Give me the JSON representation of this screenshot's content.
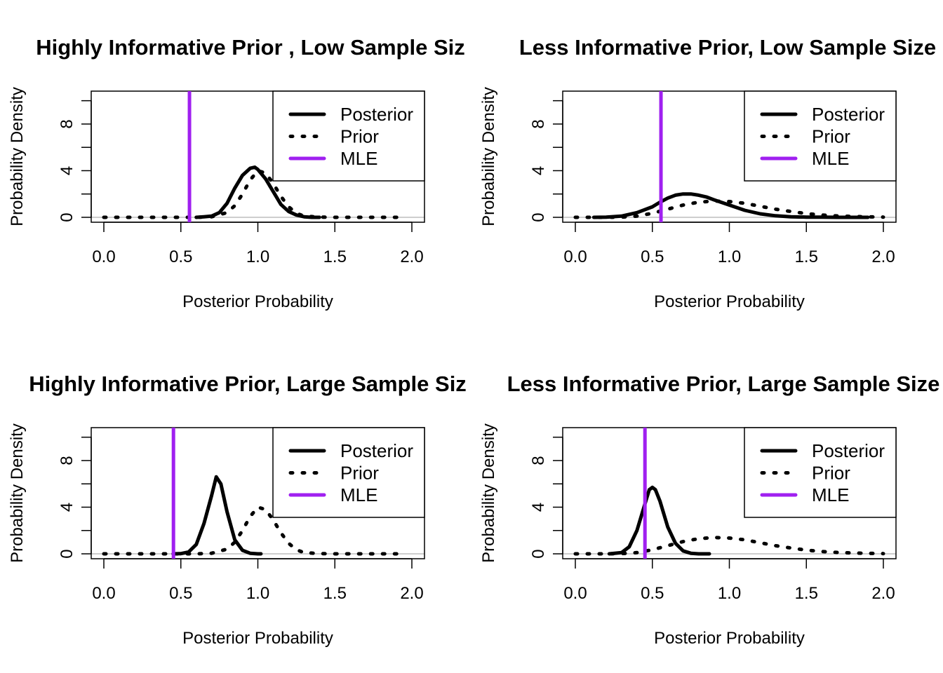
{
  "colors": {
    "posterior": "#000000",
    "prior": "#000000",
    "mle": "#a020f0",
    "zero_line": "#bebebe"
  },
  "chart_data": [
    {
      "type": "line",
      "title": "Highly Informative Prior , Low Sample Siz",
      "xlabel": "Posterior Probability",
      "ylabel": "Probability Density",
      "xlim": [
        0,
        2
      ],
      "ylim": [
        0,
        10
      ],
      "x_ticks": [
        "0.0",
        "0.5",
        "1.0",
        "1.5",
        "2.0"
      ],
      "y_ticks": [
        "0",
        "4",
        "8"
      ],
      "legend": {
        "position": "top-right",
        "entries": [
          "Posterior",
          "Prior",
          "MLE"
        ]
      },
      "mle": 0.556,
      "series": [
        {
          "name": "Posterior",
          "style": "solid",
          "x": [
            0.6,
            0.65,
            0.7,
            0.75,
            0.8,
            0.85,
            0.9,
            0.95,
            0.98,
            1.0,
            1.05,
            1.1,
            1.15,
            1.2,
            1.25,
            1.3,
            1.35,
            1.4
          ],
          "y": [
            0.0,
            0.05,
            0.1,
            0.4,
            1.2,
            2.5,
            3.6,
            4.2,
            4.3,
            4.1,
            3.3,
            2.2,
            1.1,
            0.5,
            0.2,
            0.05,
            0.0,
            0.0
          ]
        },
        {
          "name": "Prior",
          "style": "dotted",
          "x": [
            0.0,
            0.1,
            0.2,
            0.3,
            0.4,
            0.5,
            0.6,
            0.7,
            0.8,
            0.85,
            0.9,
            0.95,
            1.0,
            1.05,
            1.1,
            1.15,
            1.2,
            1.25,
            1.3,
            1.4,
            1.5,
            1.6,
            1.7,
            1.8,
            1.9,
            1.95
          ],
          "y": [
            0,
            0,
            0,
            0,
            0,
            0,
            0,
            0.05,
            0.4,
            1.0,
            2.0,
            3.2,
            4.0,
            3.8,
            2.9,
            1.8,
            0.9,
            0.35,
            0.1,
            0.02,
            0,
            0,
            0,
            0,
            0,
            0
          ]
        }
      ]
    },
    {
      "type": "line",
      "title": "Less Informative Prior, Low Sample Size",
      "xlabel": "Posterior Probability",
      "ylabel": "Probability Density",
      "xlim": [
        0,
        2
      ],
      "ylim": [
        0,
        10
      ],
      "x_ticks": [
        "0.0",
        "0.5",
        "1.0",
        "1.5",
        "2.0"
      ],
      "y_ticks": [
        "0",
        "4",
        "8"
      ],
      "legend": {
        "position": "top-right",
        "entries": [
          "Posterior",
          "Prior",
          "MLE"
        ]
      },
      "mle": 0.556,
      "series": [
        {
          "name": "Posterior",
          "style": "solid",
          "x": [
            0.12,
            0.2,
            0.3,
            0.4,
            0.5,
            0.55,
            0.6,
            0.65,
            0.7,
            0.75,
            0.8,
            0.85,
            0.9,
            1.0,
            1.1,
            1.2,
            1.3,
            1.4,
            1.5,
            1.6,
            1.7,
            1.8,
            1.9
          ],
          "y": [
            0.0,
            0.02,
            0.1,
            0.4,
            0.9,
            1.3,
            1.65,
            1.9,
            2.0,
            2.0,
            1.9,
            1.75,
            1.5,
            1.05,
            0.6,
            0.3,
            0.13,
            0.05,
            0.02,
            0.01,
            0,
            0,
            0
          ]
        },
        {
          "name": "Prior",
          "style": "dotted",
          "x": [
            0.0,
            0.1,
            0.2,
            0.3,
            0.4,
            0.5,
            0.6,
            0.7,
            0.8,
            0.9,
            1.0,
            1.1,
            1.2,
            1.3,
            1.4,
            1.5,
            1.6,
            1.7,
            1.8,
            1.9,
            2.0
          ],
          "y": [
            0,
            0,
            0,
            0.02,
            0.1,
            0.35,
            0.7,
            1.05,
            1.3,
            1.4,
            1.35,
            1.2,
            0.95,
            0.7,
            0.5,
            0.32,
            0.2,
            0.12,
            0.07,
            0.04,
            0.02
          ]
        }
      ]
    },
    {
      "type": "line",
      "title": "Highly Informative Prior, Large Sample Siz",
      "xlabel": "Posterior Probability",
      "ylabel": "Probability Density",
      "xlim": [
        0,
        2
      ],
      "ylim": [
        0,
        10
      ],
      "x_ticks": [
        "0.0",
        "0.5",
        "1.0",
        "1.5",
        "2.0"
      ],
      "y_ticks": [
        "0",
        "4",
        "8"
      ],
      "legend": {
        "position": "top-right",
        "entries": [
          "Posterior",
          "Prior",
          "MLE"
        ]
      },
      "mle": 0.452,
      "series": [
        {
          "name": "Posterior",
          "style": "solid",
          "x": [
            0.45,
            0.5,
            0.55,
            0.6,
            0.65,
            0.7,
            0.73,
            0.76,
            0.8,
            0.85,
            0.9,
            0.95,
            1.0,
            1.02
          ],
          "y": [
            0.0,
            0.02,
            0.15,
            0.8,
            2.6,
            5.0,
            6.6,
            6.0,
            3.6,
            1.2,
            0.3,
            0.05,
            0.0,
            0.0
          ]
        },
        {
          "name": "Prior",
          "style": "dotted",
          "x": [
            0.0,
            0.1,
            0.2,
            0.3,
            0.4,
            0.5,
            0.6,
            0.7,
            0.8,
            0.85,
            0.9,
            0.95,
            1.0,
            1.05,
            1.1,
            1.15,
            1.2,
            1.25,
            1.3,
            1.4,
            1.5,
            1.6,
            1.7,
            1.8,
            1.9,
            1.95
          ],
          "y": [
            0,
            0,
            0,
            0,
            0,
            0,
            0,
            0.05,
            0.4,
            1.0,
            2.0,
            3.2,
            4.0,
            3.8,
            2.9,
            1.8,
            0.9,
            0.35,
            0.1,
            0.02,
            0,
            0,
            0,
            0,
            0,
            0
          ]
        }
      ]
    },
    {
      "type": "line",
      "title": "Less Informative Prior, Large Sample Size",
      "xlabel": "Posterior Probability",
      "ylabel": "Probability Density",
      "xlim": [
        0,
        2
      ],
      "ylim": [
        0,
        10
      ],
      "x_ticks": [
        "0.0",
        "0.5",
        "1.0",
        "1.5",
        "2.0"
      ],
      "y_ticks": [
        "0",
        "4",
        "8"
      ],
      "legend": {
        "position": "top-right",
        "entries": [
          "Posterior",
          "Prior",
          "MLE"
        ]
      },
      "mle": 0.452,
      "series": [
        {
          "name": "Posterior",
          "style": "solid",
          "x": [
            0.22,
            0.3,
            0.35,
            0.4,
            0.45,
            0.48,
            0.5,
            0.52,
            0.55,
            0.6,
            0.65,
            0.7,
            0.75,
            0.8,
            0.87
          ],
          "y": [
            0.0,
            0.1,
            0.6,
            2.0,
            4.2,
            5.5,
            5.7,
            5.5,
            4.5,
            2.3,
            0.9,
            0.25,
            0.05,
            0.0,
            0.0
          ]
        },
        {
          "name": "Prior",
          "style": "dotted",
          "x": [
            0.0,
            0.1,
            0.2,
            0.3,
            0.4,
            0.5,
            0.6,
            0.7,
            0.8,
            0.9,
            1.0,
            1.1,
            1.2,
            1.3,
            1.4,
            1.5,
            1.6,
            1.7,
            1.8,
            1.9,
            2.0
          ],
          "y": [
            0,
            0,
            0,
            0.02,
            0.1,
            0.35,
            0.7,
            1.05,
            1.3,
            1.4,
            1.35,
            1.2,
            0.95,
            0.7,
            0.5,
            0.32,
            0.2,
            0.12,
            0.07,
            0.04,
            0.02
          ]
        }
      ]
    }
  ]
}
